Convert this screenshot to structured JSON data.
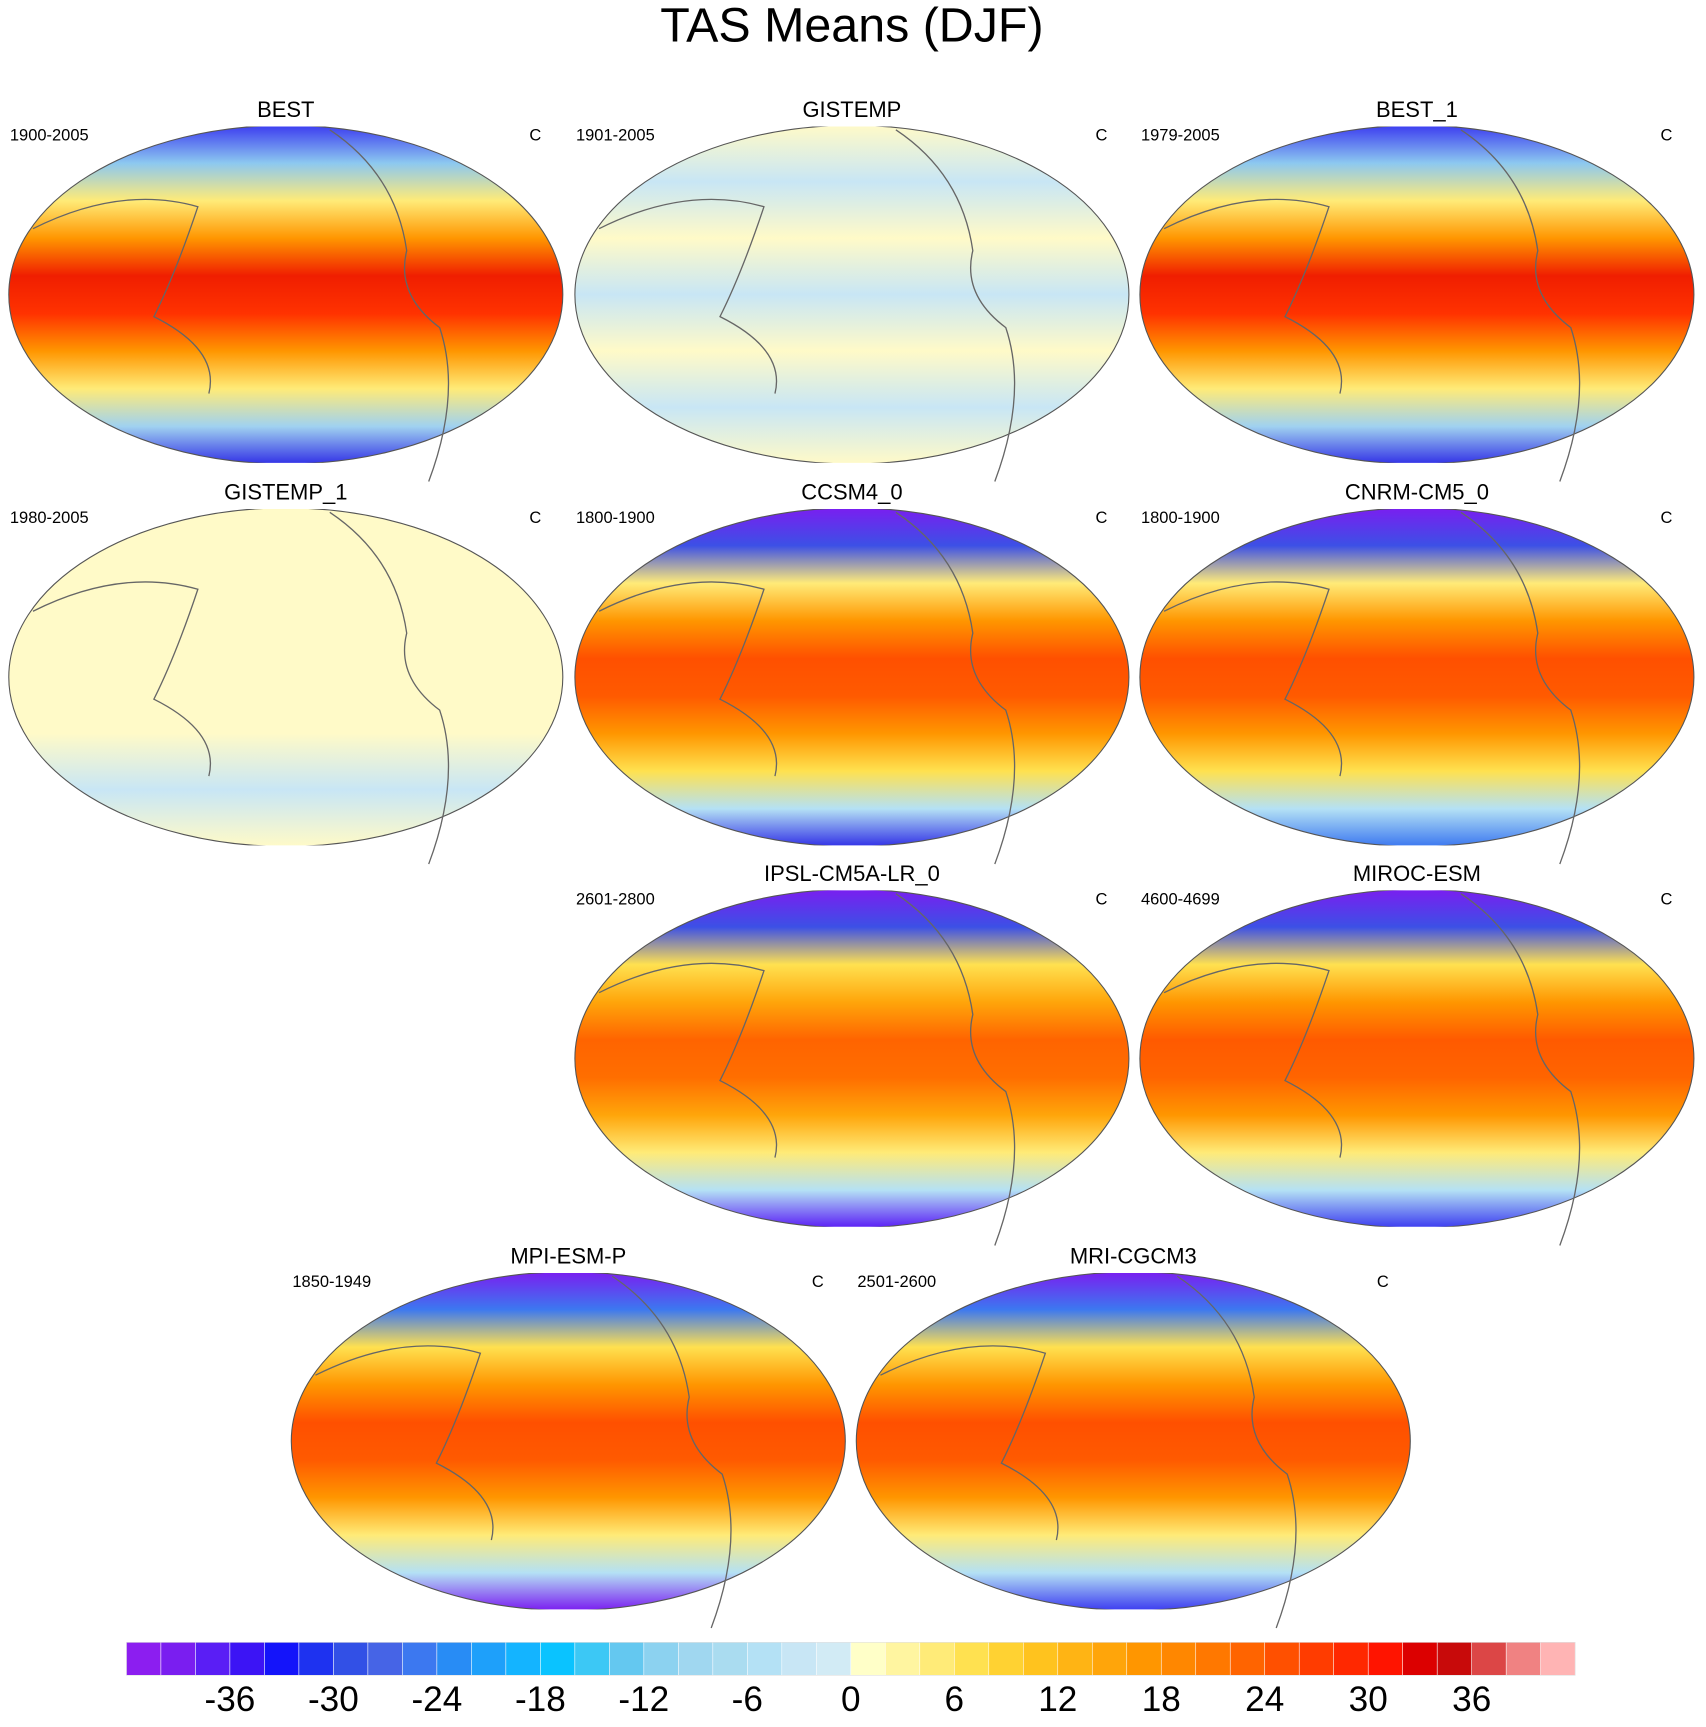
{
  "title": "TAS Means (DJF)",
  "panels": [
    {
      "name": "BEST",
      "period": "1900-2005",
      "units": "C",
      "fill_colors": [
        "#3c3cf0",
        "#8cc8f0",
        "#ffeb78",
        "#ff9600",
        "#f01e00",
        "#ff3200",
        "#ff9600",
        "#ffeb78",
        "#a0d2f0",
        "#3232e6"
      ]
    },
    {
      "name": "GISTEMP",
      "period": "1901-2005",
      "units": "C",
      "fill_colors": [
        "#fffac8",
        "#c8e6f5",
        "#fffac8",
        "#c8e6f5",
        "#fffac8",
        "#c8e6f5",
        "#fffac8"
      ]
    },
    {
      "name": "BEST_1",
      "period": "1979-2005",
      "units": "C",
      "fill_colors": [
        "#3c3cf0",
        "#8cc8f0",
        "#ffeb78",
        "#ff9600",
        "#f01e00",
        "#ff3200",
        "#ff9600",
        "#ffeb78",
        "#a0d2f0",
        "#3232e6"
      ]
    },
    {
      "name": "GISTEMP_1",
      "period": "1980-2005",
      "units": "C",
      "fill_colors": [
        "#fffac8",
        "#fffac8",
        "#fffac8",
        "#fffac8",
        "#fffac8",
        "#c8e6f5",
        "#fffac8"
      ]
    },
    {
      "name": "CCSM4_0",
      "period": "1800-1900",
      "units": "C",
      "fill_colors": [
        "#7a1ef0",
        "#3c50e6",
        "#ffeb78",
        "#ff9600",
        "#ff5000",
        "#ff5a00",
        "#ff9600",
        "#ffe150",
        "#b4e1f5",
        "#3232e6"
      ]
    },
    {
      "name": "CNRM-CM5_0",
      "period": "1800-1900",
      "units": "C",
      "fill_colors": [
        "#7a1ef0",
        "#3c50e6",
        "#ffeb78",
        "#ff9600",
        "#ff5000",
        "#ff5a00",
        "#ff9600",
        "#ffe150",
        "#b4e1f5",
        "#3c78f0"
      ]
    },
    {
      "name": "IPSL-CM5A-LR_0",
      "period": "2601-2800",
      "units": "C",
      "fill_colors": [
        "#7a1ef0",
        "#3c50e6",
        "#ffe150",
        "#ffa50a",
        "#ff6400",
        "#ff6e00",
        "#ffa50a",
        "#ffeb78",
        "#b4e1f5",
        "#5a1ef5"
      ]
    },
    {
      "name": "MIROC-ESM",
      "period": "4600-4699",
      "units": "C",
      "fill_colors": [
        "#7a1ef0",
        "#3c50e6",
        "#ffe150",
        "#ff9600",
        "#ff5a00",
        "#ff6400",
        "#ff9600",
        "#ffeb78",
        "#b4e1f5",
        "#3c3cf0"
      ]
    },
    {
      "name": "MPI-ESM-P",
      "period": "1850-1949",
      "units": "C",
      "fill_colors": [
        "#7a1ef0",
        "#3c78f0",
        "#ffe150",
        "#ff9600",
        "#ff5000",
        "#ff5a00",
        "#ff9600",
        "#ffeb78",
        "#b4e1f5",
        "#7a1ef0"
      ]
    },
    {
      "name": "MRI-CGCM3",
      "period": "2501-2600",
      "units": "C",
      "fill_colors": [
        "#7a1ef0",
        "#3c78f0",
        "#ffe150",
        "#ff9600",
        "#ff5000",
        "#ff5a00",
        "#ff9600",
        "#ffeb78",
        "#b4e1f5",
        "#3c3cf0"
      ]
    }
  ],
  "colorbar": {
    "lim": [
      -42,
      42
    ],
    "ticks": [
      -36,
      -30,
      -24,
      -18,
      -12,
      -6,
      0,
      6,
      12,
      18,
      24,
      30,
      36
    ],
    "colors": [
      "#8c1ef0",
      "#7a1ef0",
      "#5a1ef5",
      "#3c14f5",
      "#1414fa",
      "#1e32f0",
      "#3250e6",
      "#4664e6",
      "#3c78f0",
      "#288cf5",
      "#1ea0fa",
      "#14b4ff",
      "#0ac3ff",
      "#3cc8f5",
      "#64c8f0",
      "#8cd2f0",
      "#a0d7f0",
      "#aadcf0",
      "#b4e1f5",
      "#c8e6f5",
      "#d2ebf5",
      "#ffffc8",
      "#fff5a0",
      "#ffeb78",
      "#ffe150",
      "#ffd232",
      "#ffc31e",
      "#ffb414",
      "#ffa50a",
      "#ff9600",
      "#ff8700",
      "#ff7800",
      "#ff6400",
      "#ff5000",
      "#ff3c00",
      "#ff2800",
      "#ff1400",
      "#dc0000",
      "#c80a0a",
      "#dc4646",
      "#f08282",
      "#ffb4b4"
    ]
  }
}
